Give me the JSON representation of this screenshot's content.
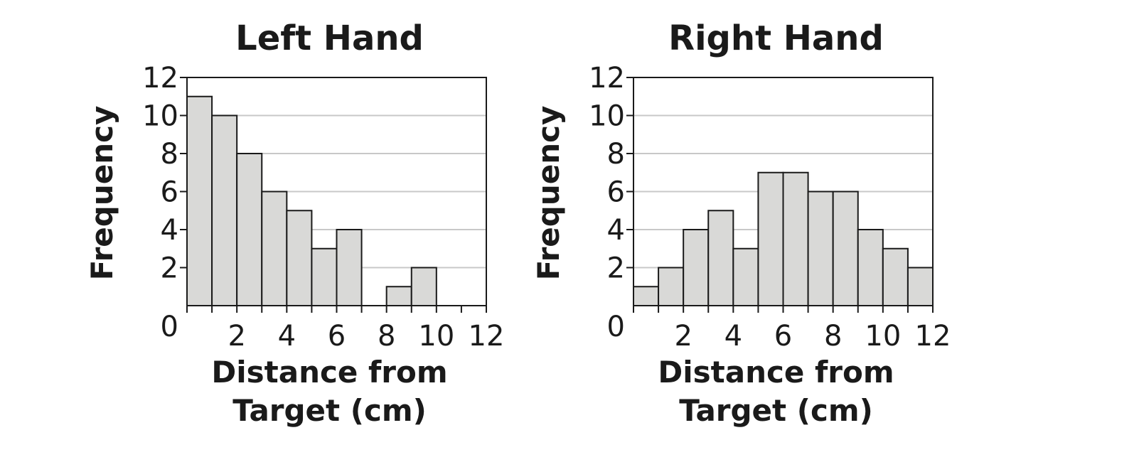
{
  "chart_data": [
    {
      "type": "bar",
      "title": "Left Hand",
      "xlabel_lines": [
        "Distance from",
        "Target (cm)"
      ],
      "ylabel": "Frequency",
      "bin_edges": [
        0,
        1,
        2,
        3,
        4,
        5,
        6,
        7,
        8,
        9,
        10,
        11,
        12
      ],
      "values": [
        11,
        10,
        8,
        6,
        5,
        3,
        4,
        0,
        1,
        2,
        0,
        0
      ],
      "xticks": [
        0,
        2,
        4,
        6,
        8,
        10,
        12
      ],
      "yticks": [
        0,
        2,
        4,
        6,
        8,
        10,
        12
      ],
      "xlim": [
        0,
        12
      ],
      "ylim": [
        0,
        12
      ],
      "grid": true,
      "bar_color": "#d9d9d7",
      "grid_color": "#c8c8c8"
    },
    {
      "type": "bar",
      "title": "Right Hand",
      "xlabel_lines": [
        "Distance from",
        "Target (cm)"
      ],
      "ylabel": "Frequency",
      "bin_edges": [
        0,
        1,
        2,
        3,
        4,
        5,
        6,
        7,
        8,
        9,
        10,
        11,
        12
      ],
      "values": [
        1,
        2,
        4,
        5,
        3,
        7,
        7,
        6,
        6,
        4,
        3,
        2
      ],
      "xticks": [
        0,
        2,
        4,
        6,
        8,
        10,
        12
      ],
      "yticks": [
        0,
        2,
        4,
        6,
        8,
        10,
        12
      ],
      "xlim": [
        0,
        12
      ],
      "ylim": [
        0,
        12
      ],
      "grid": true,
      "bar_color": "#d9d9d7",
      "grid_color": "#c8c8c8"
    }
  ]
}
